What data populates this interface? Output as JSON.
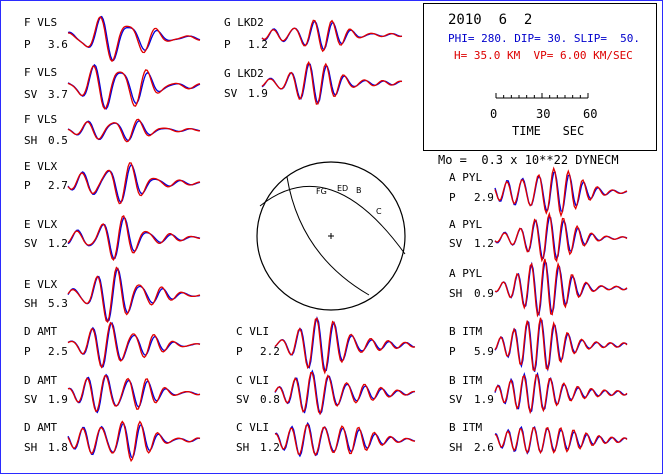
{
  "header": {
    "date": "2010  6  2",
    "params": "PHI= 280. DIP= 30. SLIP=  50.",
    "depth": "H= 35.0 KM  VP= 6.00 KM/SEC",
    "scale_ticks": [
      "0",
      "30",
      "60"
    ],
    "scale_unit": "TIME   SEC"
  },
  "moment": "Mo =  0.3 x 10**22 DYNECM",
  "colors": {
    "observed": "#0000dd",
    "synthetic": "#e00000",
    "frame": "#2b2bff"
  },
  "traces": [
    {
      "station": "F VLS",
      "phase": "P",
      "amp": "3.6"
    },
    {
      "station": "F VLS",
      "phase": "SV",
      "amp": "3.7"
    },
    {
      "station": "F VLS",
      "phase": "SH",
      "amp": "0.5"
    },
    {
      "station": "E VLX",
      "phase": "P",
      "amp": "2.7"
    },
    {
      "station": "E VLX",
      "phase": "SV",
      "amp": "1.2"
    },
    {
      "station": "E VLX",
      "phase": "SH",
      "amp": "5.3"
    },
    {
      "station": "D AMT",
      "phase": "P",
      "amp": "2.5"
    },
    {
      "station": "D AMT",
      "phase": "SV",
      "amp": "1.9"
    },
    {
      "station": "D AMT",
      "phase": "SH",
      "amp": "1.8"
    },
    {
      "station": "G LKD2",
      "phase": "P",
      "amp": "1.2"
    },
    {
      "station": "G LKD2",
      "phase": "SV",
      "amp": "1.9"
    },
    {
      "station": "C VLI",
      "phase": "P",
      "amp": "2.2"
    },
    {
      "station": "C VLI",
      "phase": "SV",
      "amp": "0.8"
    },
    {
      "station": "C VLI",
      "phase": "SH",
      "amp": "1.2"
    },
    {
      "station": "A PYL",
      "phase": "P",
      "amp": "2.9"
    },
    {
      "station": "A PYL",
      "phase": "SV",
      "amp": "1.2"
    },
    {
      "station": "A PYL",
      "phase": "SH",
      "amp": "0.9"
    },
    {
      "station": "B ITM",
      "phase": "P",
      "amp": "5.9"
    },
    {
      "station": "B ITM",
      "phase": "SV",
      "amp": "1.9"
    },
    {
      "station": "B ITM",
      "phase": "SH",
      "amp": "2.6"
    }
  ],
  "beachball": {
    "station_codes": [
      "FG",
      "ED",
      "B",
      "C"
    ]
  }
}
